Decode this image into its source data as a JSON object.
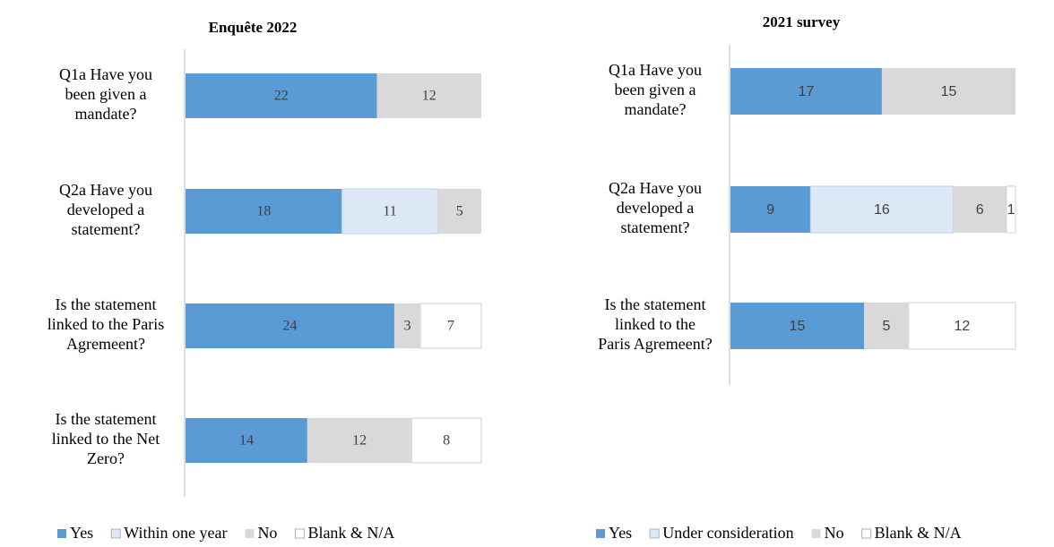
{
  "colors": {
    "yes": "#5b9bd5",
    "pending": "#dce8f5",
    "no": "#d9d9d9",
    "blank": "#ffffff",
    "outline": "#d9d9d9",
    "axis": "#bfbfbf",
    "label_text": "#404040",
    "category_text": "#000000"
  },
  "chart_data": [
    {
      "type": "bar",
      "orientation": "horizontal",
      "stacked": true,
      "title": "Enquête 2022",
      "categories": [
        [
          "Q1a Have you",
          "been given a",
          "mandate?"
        ],
        [
          "Q2a Have you",
          "developed a",
          "statement?"
        ],
        [
          "Is the statement",
          "linked to the Paris",
          "Agremeent?"
        ],
        [
          "Is the statement",
          "linked to the Net",
          "Zero?"
        ]
      ],
      "series": [
        {
          "name": "Yes",
          "color_key": "yes",
          "values": [
            22,
            18,
            24,
            14
          ]
        },
        {
          "name": "Within one year",
          "color_key": "pending",
          "values": [
            0,
            11,
            0,
            0
          ]
        },
        {
          "name": "No",
          "color_key": "no",
          "values": [
            12,
            5,
            3,
            12
          ]
        },
        {
          "name": "Blank & N/A",
          "color_key": "blank",
          "values": [
            0,
            0,
            7,
            8
          ]
        }
      ],
      "total": 34,
      "legend_position": "bottom",
      "grid": false
    },
    {
      "type": "bar",
      "orientation": "horizontal",
      "stacked": true,
      "title": "2021 survey",
      "categories": [
        [
          "Q1a Have you",
          "been given a",
          "mandate?"
        ],
        [
          "Q2a Have you",
          "developed a",
          "statement?"
        ],
        [
          "Is the statement",
          "linked to the",
          "Paris Agremeent?"
        ]
      ],
      "series": [
        {
          "name": "Yes",
          "color_key": "yes",
          "values": [
            17,
            9,
            15
          ]
        },
        {
          "name": "Under consideration",
          "color_key": "pending",
          "values": [
            0,
            16,
            0
          ]
        },
        {
          "name": "No",
          "color_key": "no",
          "values": [
            15,
            6,
            5
          ]
        },
        {
          "name": "Blank & N/A",
          "color_key": "blank",
          "values": [
            0,
            1,
            12
          ]
        }
      ],
      "total": 32,
      "legend_position": "bottom",
      "grid": false
    }
  ]
}
